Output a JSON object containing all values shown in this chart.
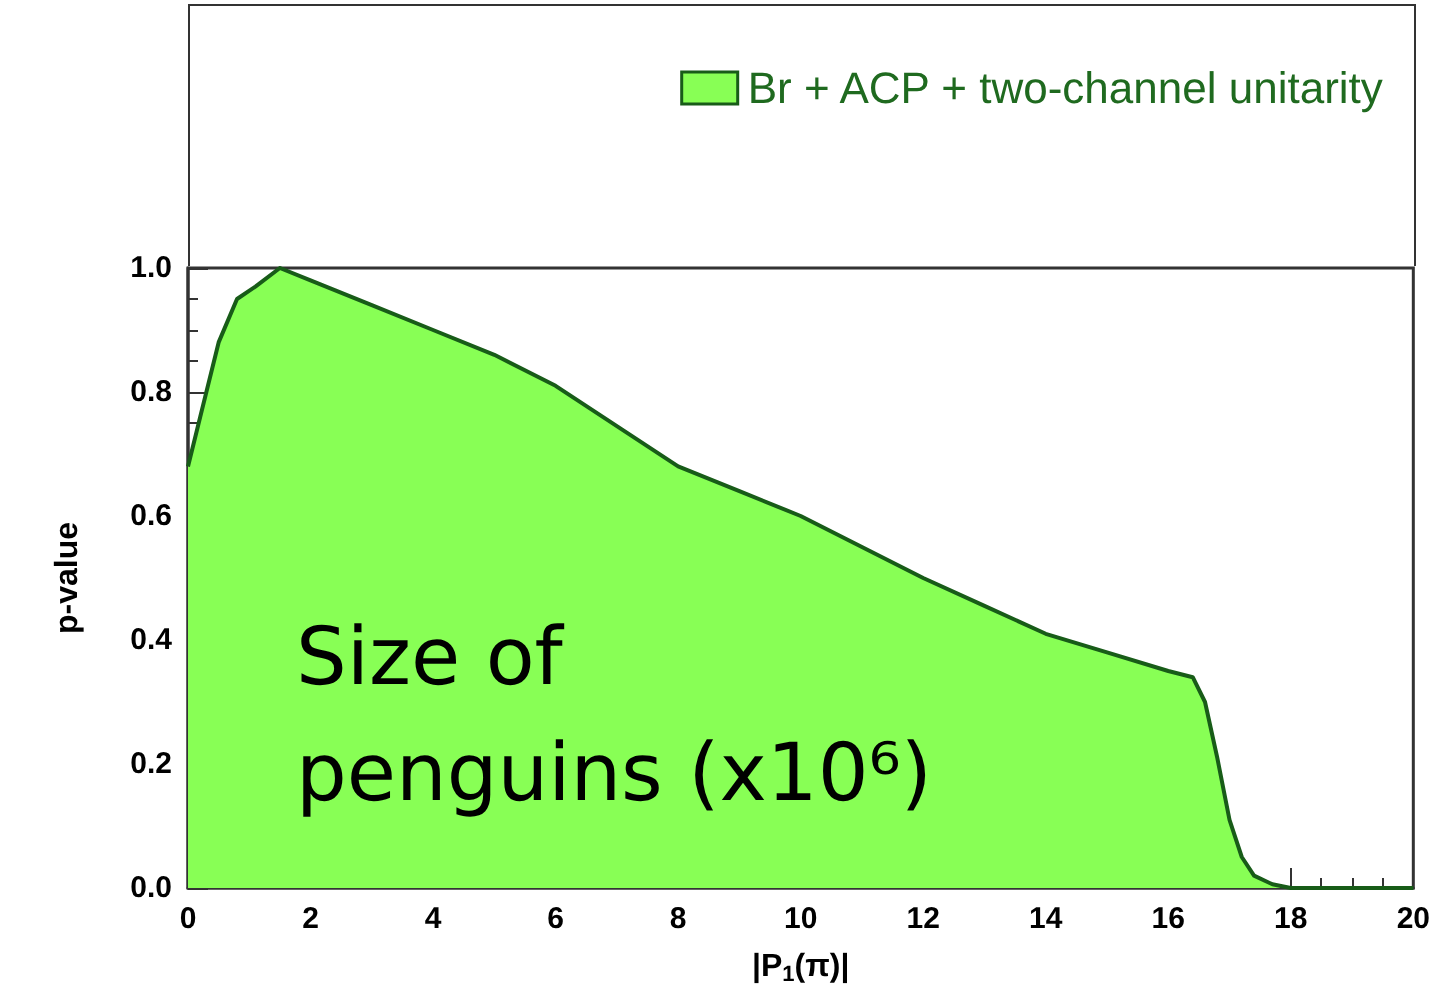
{
  "chart_data": {
    "type": "area",
    "xlabel": "|P$_{1}$(π)|",
    "ylabel": "p-value",
    "legend": "top right",
    "grid": false,
    "marker": "none",
    "xlim": [
      0,
      20
    ],
    "xticks": [
      0,
      2,
      4,
      6,
      8,
      10,
      12,
      14,
      16,
      18,
      20
    ],
    "ylim": [
      0,
      1
    ],
    "yticks": [
      {
        "value": 0,
        "label": "0.0"
      },
      0.2,
      0.4,
      0.6,
      0.8,
      {
        "value": 1,
        "label": "1.0"
      }
    ],
    "annotations": [
      "Size of penguins (x10⁶)"
    ],
    "series": [
      {
        "name": "Br + ACP + two-channel unitarity",
        "color": "#88ff55",
        "x": [
          0,
          0.2,
          0.5,
          0.8,
          1.1,
          1.5,
          2,
          3,
          4,
          5,
          6,
          7,
          8,
          9,
          10,
          11,
          12,
          13,
          14,
          15,
          16,
          16.4,
          16.6,
          16.8,
          17,
          17.2,
          17.4,
          17.7,
          18,
          19,
          20
        ],
        "values": [
          0.68,
          0.76,
          0.88,
          0.95,
          0.97,
          1.0,
          0.98,
          0.94,
          0.9,
          0.86,
          0.81,
          0.745,
          0.68,
          0.64,
          0.6,
          0.55,
          0.5,
          0.455,
          0.41,
          0.38,
          0.35,
          0.34,
          0.3,
          0.21,
          0.11,
          0.05,
          0.02,
          0.006,
          0.0,
          0.0,
          0.0
        ]
      }
    ]
  }
}
